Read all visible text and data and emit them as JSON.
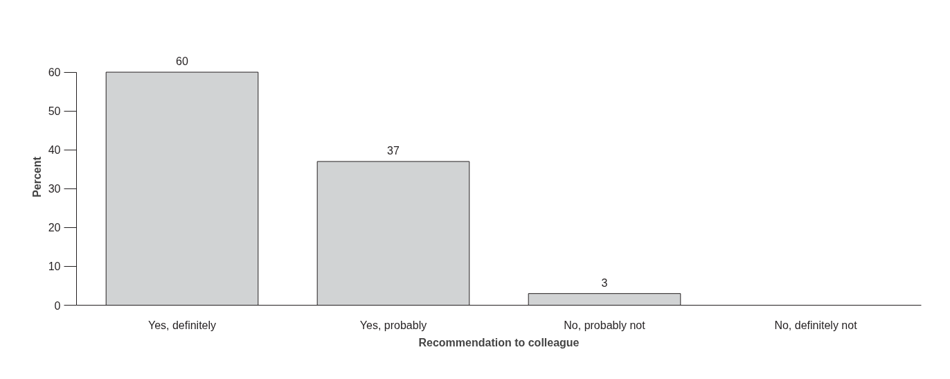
{
  "chart_data": {
    "type": "bar",
    "categories": [
      "Yes, definitely",
      "Yes, probably",
      "No, probably not",
      "No, definitely not"
    ],
    "values": [
      60,
      37,
      3,
      0
    ],
    "value_labels": [
      "60",
      "37",
      "3",
      null
    ],
    "color": "#d1d3d4",
    "xlabel": "Recommendation to colleague",
    "ylabel": "Percent",
    "ylim": [
      0,
      60
    ],
    "yticks": [
      0,
      10,
      20,
      30,
      40,
      50,
      60
    ],
    "grid": false
  }
}
